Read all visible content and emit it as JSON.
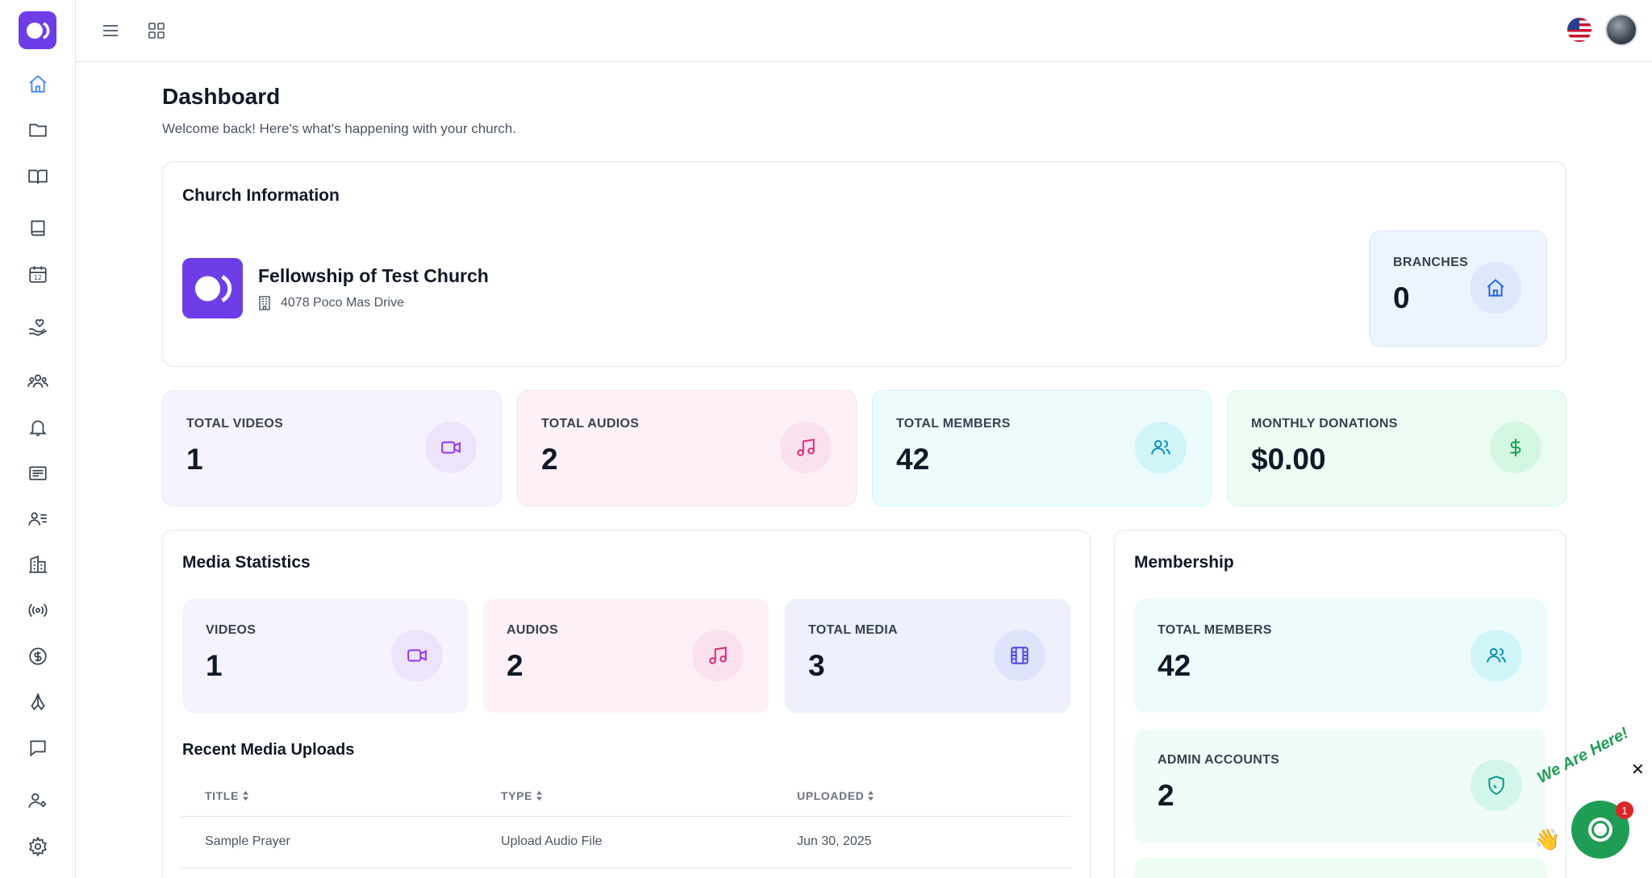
{
  "header": {
    "title": "Dashboard",
    "subtitle": "Welcome back! Here's what's happening with your church."
  },
  "church_info": {
    "title": "Church Information",
    "name": "Fellowship of Test Church",
    "address": "4078 Poco Mas Drive",
    "branches_label": "BRANCHES",
    "branches_value": "0"
  },
  "stats": {
    "videos": {
      "label": "TOTAL VIDEOS",
      "value": "1"
    },
    "audios": {
      "label": "TOTAL AUDIOS",
      "value": "2"
    },
    "members": {
      "label": "TOTAL MEMBERS",
      "value": "42"
    },
    "donations": {
      "label": "MONTHLY DONATIONS",
      "value": "$0.00"
    }
  },
  "media_statistics": {
    "title": "Media Statistics",
    "videos": {
      "label": "VIDEOS",
      "value": "1"
    },
    "audios": {
      "label": "AUDIOS",
      "value": "2"
    },
    "total": {
      "label": "TOTAL MEDIA",
      "value": "3"
    }
  },
  "recent_uploads": {
    "title": "Recent Media Uploads",
    "columns": [
      "TITLE",
      "TYPE",
      "UPLOADED"
    ],
    "rows": [
      {
        "title": "Sample Prayer",
        "type": "Upload Audio File",
        "uploaded": "Jun 30, 2025"
      }
    ]
  },
  "membership": {
    "title": "Membership",
    "total": {
      "label": "TOTAL MEMBERS",
      "value": "42"
    },
    "admins": {
      "label": "ADMIN ACCOUNTS",
      "value": "2"
    }
  },
  "chat": {
    "text": "We Are Here!",
    "badge": "1",
    "close": "✕"
  },
  "colors": {
    "brand": "#6d3ee8",
    "purple_bg": "#f7f3fe",
    "pink_bg": "#fdf0f6",
    "cyan_bg": "#ecfcfd",
    "green_bg": "#ecfdf4",
    "indigo_bg": "#eef0fe",
    "blue_bg": "#eef4fe",
    "chat_green": "#1f9d55"
  },
  "icons": {
    "sidebar": [
      "home-icon",
      "folder-icon",
      "book-open-icon",
      "book-icon",
      "calendar-icon",
      "donation-hand-icon",
      "users-group-icon",
      "bell-icon",
      "news-icon",
      "user-list-icon",
      "buildings-icon",
      "broadcast-icon",
      "dollar-circle-icon",
      "praying-hands-icon",
      "chat-icon",
      "user-cog-icon",
      "gear-icon"
    ]
  }
}
